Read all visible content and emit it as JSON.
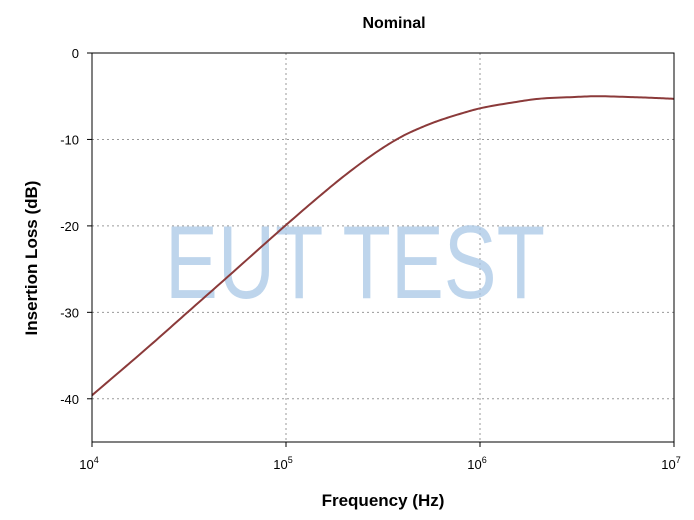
{
  "chart_data": {
    "type": "line",
    "title": "Nominal",
    "xlabel": "Frequency (Hz)",
    "ylabel": "Insertion Loss (dB)",
    "x_scale": "log",
    "xlim": [
      10000,
      10000000
    ],
    "ylim": [
      -45,
      0
    ],
    "x_ticks": [
      {
        "base": "10",
        "exp": "4",
        "value": 10000
      },
      {
        "base": "10",
        "exp": "5",
        "value": 100000
      },
      {
        "base": "10",
        "exp": "6",
        "value": 1000000
      },
      {
        "base": "10",
        "exp": "7",
        "value": 10000000
      }
    ],
    "y_ticks": [
      {
        "label": "0",
        "value": 0
      },
      {
        "label": "-10",
        "value": -10
      },
      {
        "label": "-20",
        "value": -20
      },
      {
        "label": "-30",
        "value": -30
      },
      {
        "label": "-40",
        "value": -40
      }
    ],
    "grid": true,
    "series": [
      {
        "color": "#8b3a3a",
        "x": [
          10000,
          20000,
          30000,
          50000,
          100000,
          150000,
          200000,
          300000,
          400000,
          500000,
          600000,
          800000,
          1000000,
          1500000,
          2000000,
          3000000,
          4000000,
          6000000,
          8000000,
          10000000
        ],
        "y": [
          -39.6,
          -33.8,
          -30.3,
          -25.9,
          -19.9,
          -16.5,
          -14.2,
          -11.3,
          -9.6,
          -8.6,
          -7.9,
          -7.0,
          -6.4,
          -5.7,
          -5.3,
          -5.1,
          -5.0,
          -5.1,
          -5.2,
          -5.3
        ]
      }
    ]
  },
  "watermark": "EUT TEST"
}
